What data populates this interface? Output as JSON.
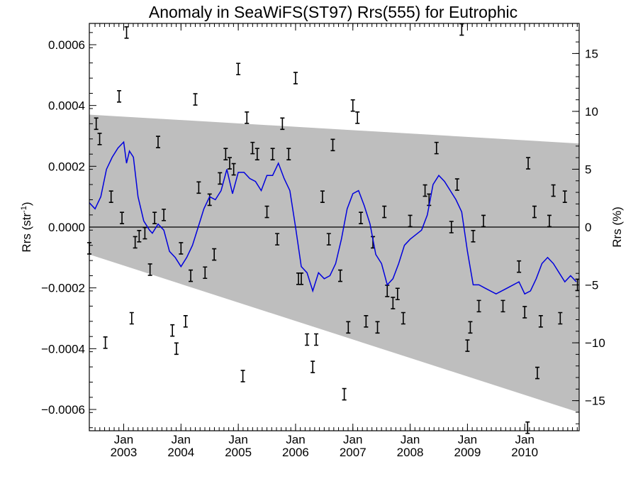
{
  "chart_data": {
    "type": "line",
    "title": "Anomaly in SeaWiFS(ST97) Rrs(555) for Eutrophic",
    "ylabel_left_main": "Rrs (str",
    "ylabel_left_sup": "-1",
    "ylabel_left_close": ")",
    "ylabel_right": "Rrs (%)",
    "xlabel": "",
    "x_range": [
      2002.4,
      2010.95
    ],
    "ylim": [
      -0.00067,
      0.00067
    ],
    "ylim_right_percent": [
      -17.6,
      17.6
    ],
    "grid": false,
    "x_ticks": [
      {
        "x": 2003.0,
        "month": "Jan",
        "year": "2003"
      },
      {
        "x": 2004.0,
        "month": "Jan",
        "year": "2004"
      },
      {
        "x": 2005.0,
        "month": "Jan",
        "year": "2005"
      },
      {
        "x": 2006.0,
        "month": "Jan",
        "year": "2006"
      },
      {
        "x": 2007.0,
        "month": "Jan",
        "year": "2007"
      },
      {
        "x": 2008.0,
        "month": "Jan",
        "year": "2008"
      },
      {
        "x": 2009.0,
        "month": "Jan",
        "year": "2009"
      },
      {
        "x": 2010.0,
        "month": "Jan",
        "year": "2010"
      }
    ],
    "y_ticks_left": [
      {
        "v": 0.0006,
        "label": "0.0006"
      },
      {
        "v": 0.0004,
        "label": "0.0004"
      },
      {
        "v": 0.0002,
        "label": "0.0002"
      },
      {
        "v": 0.0,
        "label": "0.0000"
      },
      {
        "v": -0.0002,
        "label": "−0.0002"
      },
      {
        "v": -0.0004,
        "label": "−0.0004"
      },
      {
        "v": -0.0006,
        "label": "−0.0006"
      }
    ],
    "y_ticks_right": [
      {
        "v": 15,
        "label": "15"
      },
      {
        "v": 10,
        "label": "10"
      },
      {
        "v": 5,
        "label": "5"
      },
      {
        "v": 0,
        "label": "0"
      },
      {
        "v": -5,
        "label": "−5"
      },
      {
        "v": -10,
        "label": "−10"
      },
      {
        "v": -15,
        "label": "−15"
      }
    ],
    "band": {
      "color": "#bebebe",
      "upper": [
        [
          2002.4,
          0.00037
        ],
        [
          2010.95,
          0.000275
        ]
      ],
      "lower": [
        [
          2002.4,
          -9e-05
        ],
        [
          2010.95,
          -0.00061
        ]
      ]
    },
    "zero_line_color": "#000000",
    "smooth_series": {
      "color": "#0000dd",
      "points": [
        [
          2002.4,
          8e-05
        ],
        [
          2002.5,
          6e-05
        ],
        [
          2002.6,
          0.0001
        ],
        [
          2002.7,
          0.00019
        ],
        [
          2002.8,
          0.00023
        ],
        [
          2002.9,
          0.00026
        ],
        [
          2003.0,
          0.00028
        ],
        [
          2003.05,
          0.00021
        ],
        [
          2003.1,
          0.00025
        ],
        [
          2003.17,
          0.00023
        ],
        [
          2003.25,
          0.0001
        ],
        [
          2003.35,
          2e-05
        ],
        [
          2003.45,
          -1e-05
        ],
        [
          2003.5,
          -2e-05
        ],
        [
          2003.6,
          1e-05
        ],
        [
          2003.7,
          -1e-05
        ],
        [
          2003.8,
          -8e-05
        ],
        [
          2003.9,
          -0.0001
        ],
        [
          2004.0,
          -0.00013
        ],
        [
          2004.1,
          -0.0001
        ],
        [
          2004.2,
          -6e-05
        ],
        [
          2004.3,
          0.0
        ],
        [
          2004.4,
          6e-05
        ],
        [
          2004.5,
          0.0001
        ],
        [
          2004.6,
          9e-05
        ],
        [
          2004.7,
          0.00012
        ],
        [
          2004.8,
          0.00019
        ],
        [
          2004.9,
          0.00011
        ],
        [
          2005.0,
          0.00018
        ],
        [
          2005.1,
          0.00018
        ],
        [
          2005.2,
          0.00016
        ],
        [
          2005.3,
          0.00015
        ],
        [
          2005.4,
          0.00012
        ],
        [
          2005.5,
          0.00017
        ],
        [
          2005.6,
          0.00017
        ],
        [
          2005.7,
          0.00021
        ],
        [
          2005.8,
          0.00016
        ],
        [
          2005.9,
          0.00012
        ],
        [
          2006.0,
          0.0
        ],
        [
          2006.1,
          -0.00013
        ],
        [
          2006.2,
          -0.00015
        ],
        [
          2006.3,
          -0.00021
        ],
        [
          2006.4,
          -0.00015
        ],
        [
          2006.5,
          -0.00017
        ],
        [
          2006.6,
          -0.00016
        ],
        [
          2006.7,
          -0.00012
        ],
        [
          2006.8,
          -4e-05
        ],
        [
          2006.9,
          6e-05
        ],
        [
          2007.0,
          0.00011
        ],
        [
          2007.1,
          0.00012
        ],
        [
          2007.2,
          7e-05
        ],
        [
          2007.3,
          1e-05
        ],
        [
          2007.4,
          -9e-05
        ],
        [
          2007.5,
          -0.00012
        ],
        [
          2007.6,
          -0.00019
        ],
        [
          2007.7,
          -0.00017
        ],
        [
          2007.8,
          -0.00012
        ],
        [
          2007.9,
          -6e-05
        ],
        [
          2008.0,
          -4e-05
        ],
        [
          2008.2,
          -1e-05
        ],
        [
          2008.3,
          4e-05
        ],
        [
          2008.4,
          0.00014
        ],
        [
          2008.5,
          0.00017
        ],
        [
          2008.6,
          0.00015
        ],
        [
          2008.7,
          0.00012
        ],
        [
          2008.8,
          9e-05
        ],
        [
          2008.9,
          5e-05
        ],
        [
          2009.0,
          -8e-05
        ],
        [
          2009.1,
          -0.00019
        ],
        [
          2009.2,
          -0.00019
        ],
        [
          2009.3,
          -0.0002
        ],
        [
          2009.5,
          -0.00022
        ],
        [
          2009.7,
          -0.0002
        ],
        [
          2009.9,
          -0.00018
        ],
        [
          2010.0,
          -0.00022
        ],
        [
          2010.1,
          -0.00021
        ],
        [
          2010.2,
          -0.00017
        ],
        [
          2010.3,
          -0.00012
        ],
        [
          2010.4,
          -0.0001
        ],
        [
          2010.5,
          -0.00012
        ],
        [
          2010.6,
          -0.00015
        ],
        [
          2010.7,
          -0.00018
        ],
        [
          2010.8,
          -0.00016
        ],
        [
          2010.9,
          -0.00018
        ]
      ]
    },
    "error_bars": {
      "color": "#000000",
      "points": [
        [
          2002.4,
          -7e-05
        ],
        [
          2002.52,
          0.00034
        ],
        [
          2002.58,
          0.00029
        ],
        [
          2002.68,
          -0.00038
        ],
        [
          2002.78,
          0.0001
        ],
        [
          2002.92,
          0.00043
        ],
        [
          2002.97,
          3e-05
        ],
        [
          2003.05,
          0.00064
        ],
        [
          2003.14,
          -0.0003
        ],
        [
          2003.2,
          -5e-05
        ],
        [
          2003.27,
          -3e-05
        ],
        [
          2003.37,
          -2e-05
        ],
        [
          2003.46,
          -0.00014
        ],
        [
          2003.54,
          3e-05
        ],
        [
          2003.6,
          0.00028
        ],
        [
          2003.7,
          4e-05
        ],
        [
          2003.85,
          -0.00034
        ],
        [
          2003.92,
          -0.0004
        ],
        [
          2004.0,
          -7e-05
        ],
        [
          2004.08,
          -0.00031
        ],
        [
          2004.17,
          -0.00016
        ],
        [
          2004.25,
          0.00042
        ],
        [
          2004.31,
          0.00013
        ],
        [
          2004.42,
          -0.00015
        ],
        [
          2004.5,
          9e-05
        ],
        [
          2004.58,
          -9e-05
        ],
        [
          2004.68,
          0.00016
        ],
        [
          2004.78,
          0.00024
        ],
        [
          2004.85,
          0.00021
        ],
        [
          2004.92,
          0.00019
        ],
        [
          2005.0,
          0.00052
        ],
        [
          2005.08,
          -0.00049
        ],
        [
          2005.15,
          0.00036
        ],
        [
          2005.25,
          0.00026
        ],
        [
          2005.33,
          0.00024
        ],
        [
          2005.5,
          5e-05
        ],
        [
          2005.6,
          0.00024
        ],
        [
          2005.68,
          -4e-05
        ],
        [
          2005.77,
          0.00034
        ],
        [
          2005.88,
          0.00024
        ],
        [
          2006.0,
          0.00049
        ],
        [
          2006.05,
          -0.00017
        ],
        [
          2006.1,
          -0.00017
        ],
        [
          2006.2,
          -0.00037
        ],
        [
          2006.3,
          -0.00046
        ],
        [
          2006.36,
          -0.00037
        ],
        [
          2006.47,
          0.0001
        ],
        [
          2006.58,
          -4e-05
        ],
        [
          2006.65,
          0.00027
        ],
        [
          2006.78,
          -0.00016
        ],
        [
          2006.85,
          -0.00055
        ],
        [
          2006.92,
          -0.00033
        ],
        [
          2007.0,
          0.0004
        ],
        [
          2007.08,
          0.00036
        ],
        [
          2007.14,
          3e-05
        ],
        [
          2007.23,
          -0.00031
        ],
        [
          2007.35,
          -5e-05
        ],
        [
          2007.43,
          -0.00033
        ],
        [
          2007.55,
          5e-05
        ],
        [
          2007.6,
          -0.00021
        ],
        [
          2007.7,
          -0.00025
        ],
        [
          2007.78,
          -0.00022
        ],
        [
          2007.88,
          -0.0003
        ],
        [
          2008.0,
          2e-05
        ],
        [
          2008.26,
          0.00012
        ],
        [
          2008.33,
          9e-05
        ],
        [
          2008.46,
          0.00026
        ],
        [
          2008.72,
          0.0
        ],
        [
          2008.82,
          0.00014
        ],
        [
          2008.9,
          0.00065
        ],
        [
          2009.0,
          -0.00039
        ],
        [
          2009.05,
          -0.00033
        ],
        [
          2009.1,
          -3e-05
        ],
        [
          2009.2,
          -0.00026
        ],
        [
          2009.28,
          2e-05
        ],
        [
          2009.62,
          -0.00026
        ],
        [
          2009.9,
          -0.00013
        ],
        [
          2010.0,
          -0.00028
        ],
        [
          2010.06,
          0.00021
        ],
        [
          2010.17,
          5e-05
        ],
        [
          2010.22,
          -0.00048
        ],
        [
          2010.28,
          -0.00031
        ],
        [
          2010.43,
          2e-05
        ],
        [
          2010.5,
          0.00012
        ],
        [
          2010.62,
          -0.0003
        ],
        [
          2010.7,
          0.0001
        ],
        [
          2010.92,
          -0.00019
        ],
        [
          2010.05,
          -0.00066
        ]
      ]
    }
  }
}
